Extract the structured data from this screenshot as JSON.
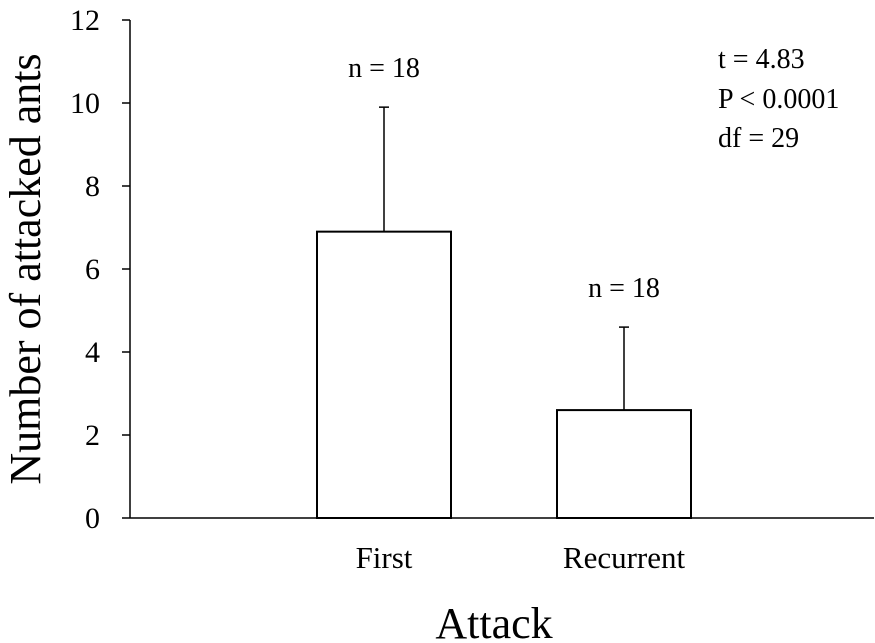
{
  "chart_data": {
    "type": "bar",
    "categories": [
      "First",
      "Recurrent"
    ],
    "series": [
      {
        "values": [
          6.9,
          2.6
        ],
        "error_plus": [
          3.0,
          2.0
        ]
      }
    ],
    "sample_labels": [
      "n = 18",
      "n = 18"
    ],
    "xlabel": "Attack",
    "ylabel": "Number of attacked ants",
    "ylim": [
      0,
      12
    ],
    "yticks": [
      0,
      2,
      4,
      6,
      8,
      10,
      12
    ],
    "grid": false,
    "stats": [
      "t = 4.83",
      "P < 0.0001",
      "df = 29"
    ],
    "bar_fill": "#ffffff",
    "bar_stroke": "#000000"
  }
}
